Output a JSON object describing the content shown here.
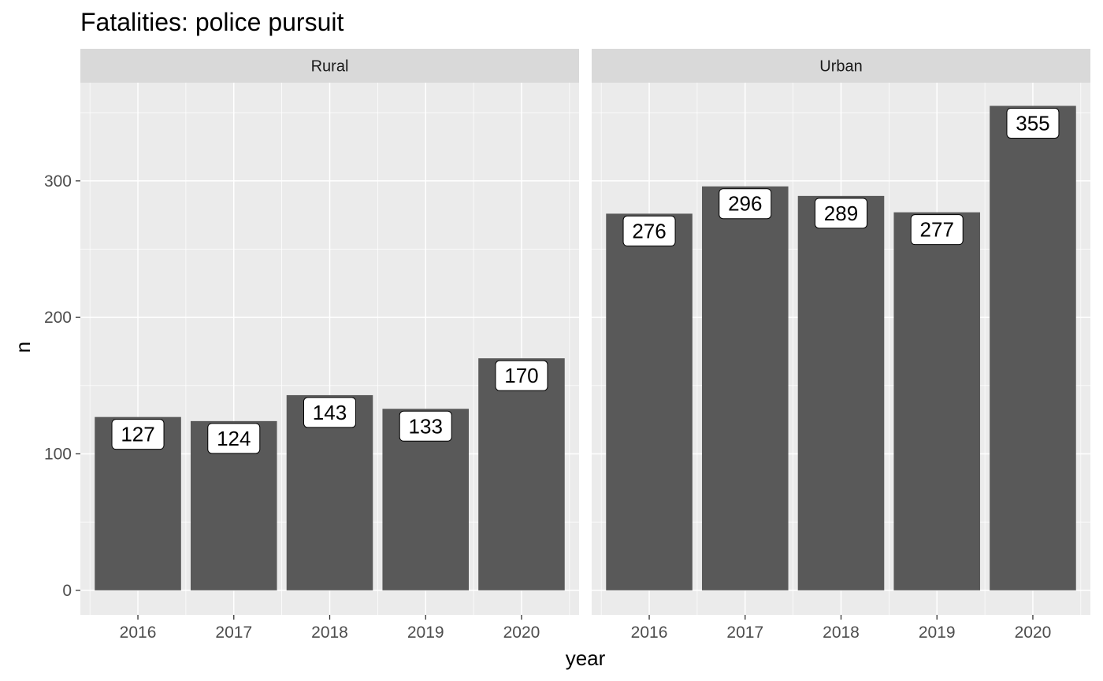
{
  "chart_data": {
    "type": "bar",
    "title": "Fatalities: police pursuit",
    "xlabel": "year",
    "ylabel": "n",
    "ylim": [
      -18,
      372
    ],
    "yticks": [
      0,
      100,
      200,
      300
    ],
    "grid": true,
    "categories": [
      "2016",
      "2017",
      "2018",
      "2019",
      "2020"
    ],
    "facets": [
      {
        "label": "Rural",
        "values": [
          127,
          124,
          143,
          133,
          170
        ]
      },
      {
        "label": "Urban",
        "values": [
          276,
          296,
          289,
          277,
          355
        ]
      }
    ]
  },
  "colors": {
    "bar": "#595959",
    "panel_bg": "#ebebeb",
    "strip_bg": "#d9d9d9",
    "grid": "#ffffff",
    "tick": "#333333",
    "label_box": "#ffffff",
    "label_border": "#000000"
  }
}
